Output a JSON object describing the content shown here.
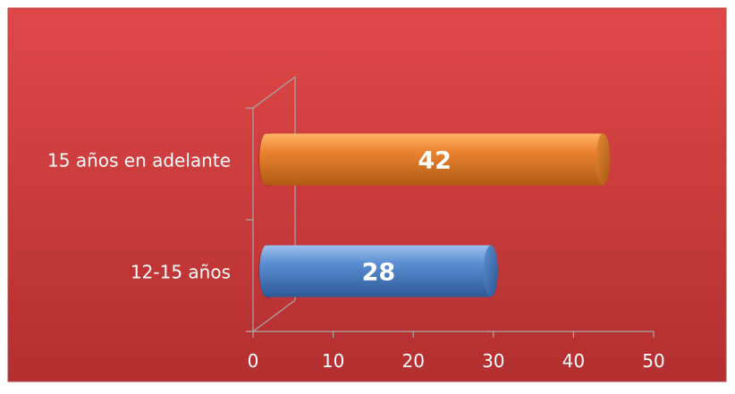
{
  "chart_data": {
    "type": "bar",
    "orientation": "horizontal",
    "three_d": true,
    "categories": [
      "12-15 años",
      "15 años en adelante"
    ],
    "values": [
      28,
      42
    ],
    "bar_colors": [
      "#4f81bd",
      "#e6802a"
    ],
    "data_labels": [
      "28",
      "42"
    ],
    "xlim": [
      0,
      50
    ],
    "x_ticks": [
      0,
      10,
      20,
      30,
      40,
      50
    ],
    "x_tick_labels": [
      "0",
      "10",
      "20",
      "30",
      "40",
      "50"
    ],
    "grid": false,
    "legend": "none",
    "title": "",
    "xlabel": "",
    "ylabel": ""
  },
  "colors": {
    "background": "#c93a3a",
    "background_light": "#e04848",
    "background_dark": "#b32f30",
    "border": "#b84545",
    "axis": "#a8a8a8",
    "text": "#ffffff"
  }
}
